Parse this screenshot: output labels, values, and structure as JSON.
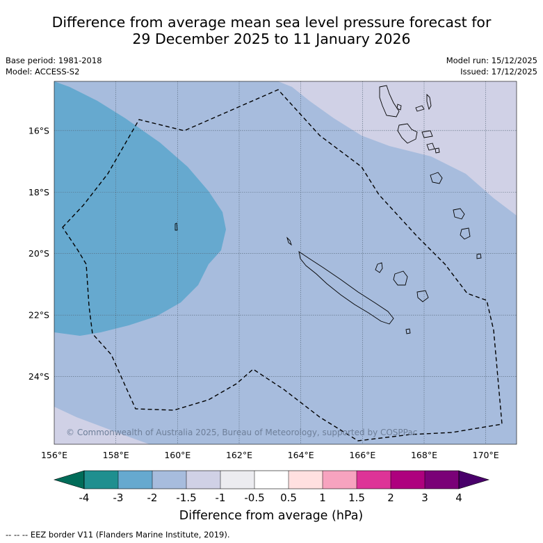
{
  "title": {
    "line1": "Difference from average mean sea level pressure forecast for",
    "line2": "29 December 2025 to 11 January 2026"
  },
  "meta_left": {
    "base_period": "Base period: 1981-2018",
    "model": "Model: ACCESS-S2"
  },
  "meta_right": {
    "model_run": "Model run: 15/12/2025",
    "issued": "Issued: 17/12/2025"
  },
  "map": {
    "lon_range": [
      156,
      171
    ],
    "lat_range": [
      -26.2,
      -14.4
    ],
    "lon_labels": [
      "156°E",
      "158°E",
      "160°E",
      "162°E",
      "164°E",
      "166°E",
      "168°E",
      "170°E"
    ],
    "lat_labels": [
      "16°S",
      "18°S",
      "20°S",
      "22°S",
      "24°S"
    ],
    "copyright": "© Commonwealth of Australia 2025, Bureau of Meteorology, supported by COSPPac"
  },
  "colorbar": {
    "ticks": [
      "-4",
      "-3",
      "-2",
      "-1.5",
      "-1",
      "-0.5",
      "0.5",
      "1",
      "1.5",
      "2",
      "3",
      "4"
    ],
    "colors": [
      "#1f8f8f",
      "#66a9cf",
      "#a7bcdd",
      "#d0d1e6",
      "#ececf0",
      "#ffffff",
      "#ffe0e0",
      "#f7a3bf",
      "#dd3497",
      "#ae017e",
      "#7a0177"
    ],
    "under_color": "#016c59",
    "over_color": "#49006a",
    "label": "Difference from average (hPa)"
  },
  "legend": {
    "eez_label": "--  --  -- EEZ border V11 (Flanders Marine Institute, 2019)."
  },
  "colors": {
    "field_light": "#a7bcdd",
    "field_mid": "#66a9cf",
    "field_pale": "#d0d1e6"
  }
}
